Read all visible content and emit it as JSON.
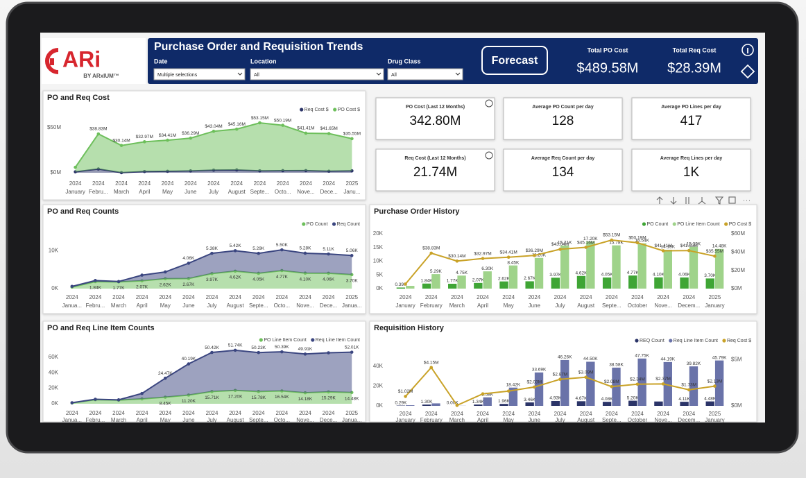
{
  "logo": {
    "name": "ARi",
    "tagline": "BY ARxIUM™"
  },
  "header": {
    "title": "Purchase Order and Requisition Trends",
    "filters": [
      {
        "label": "Date",
        "value": "Multiple selections"
      },
      {
        "label": "Location",
        "value": "All"
      },
      {
        "label": "Drug Class",
        "value": "All"
      }
    ],
    "button": "Forecast",
    "totals": [
      {
        "label": "Total PO Cost",
        "value": "$489.58M"
      },
      {
        "label": "Total Req Cost",
        "value": "$28.39M"
      }
    ]
  },
  "kpis": [
    {
      "label": "PO Cost (Last 12 Months)",
      "value": "342.80M"
    },
    {
      "label": "Average PO Count per day",
      "value": "128"
    },
    {
      "label": "Average PO Lines per day",
      "value": "417"
    },
    {
      "label": "Req Cost (Last 12 Months)",
      "value": "21.74M"
    },
    {
      "label": "Average Req Count per day",
      "value": "134"
    },
    {
      "label": "Average Req Lines per day",
      "value": "1K"
    }
  ],
  "chart_data": [
    {
      "type": "area",
      "stacked": true,
      "grid": false,
      "title": "PO and Req Cost",
      "categories": [
        "January",
        "Febru...",
        "March",
        "April",
        "May",
        "June",
        "July",
        "August",
        "Septe...",
        "Octo...",
        "Nove...",
        "Dece...",
        "Janu..."
      ],
      "years": [
        "2024",
        "2024",
        "2024",
        "2024",
        "2024",
        "2024",
        "2024",
        "2024",
        "2024",
        "2024",
        "2024",
        "2024",
        "2025"
      ],
      "ylim": [
        0,
        76
      ],
      "yticks": [
        {
          "value": 0,
          "label": "$0M"
        },
        {
          "value": 50,
          "label": "$50M"
        }
      ],
      "series": [
        {
          "name": "Req Cost $",
          "color": "#2b3468",
          "values": [
            1.02,
            4.15,
            0.05,
            1.3,
            1.6,
            2.03,
            2.87,
            3.09,
            2.08,
            2.34,
            2.37,
            1.73,
            2.13
          ]
        },
        {
          "name": "PO Cost $",
          "color": "#6dbf5b",
          "values": [
            5,
            38.83,
            30.14,
            32.97,
            34.41,
            36.29,
            43.04,
            45.16,
            53.15,
            50.19,
            41.41,
            41.65,
            35.55
          ],
          "value_labels": [
            null,
            "$38.83M",
            "$30.14M",
            "$32.97M",
            "$34.41M",
            "$36.29M",
            "$43.04M",
            "$45.16M",
            "$53.15M",
            "$50.19M",
            "$41.41M",
            "$41.65M",
            "$35.55M"
          ]
        }
      ]
    },
    {
      "type": "area",
      "stacked": true,
      "grid": false,
      "title": "PO and Req Counts",
      "categories": [
        "Janua...",
        "Febru...",
        "March",
        "April",
        "May",
        "June",
        "July",
        "August",
        "Septe...",
        "Octo...",
        "Nove...",
        "Dece...",
        "Janua..."
      ],
      "years": [
        "2024",
        "2024",
        "2024",
        "2024",
        "2024",
        "2024",
        "2024",
        "2024",
        "2024",
        "2024",
        "2024",
        "2024",
        "2025"
      ],
      "ylim": [
        0,
        12.5
      ],
      "yticks": [
        {
          "value": 0,
          "label": "0K"
        },
        {
          "value": 10,
          "label": "10K"
        }
      ],
      "series": [
        {
          "name": "PO Count",
          "color": "#6dbf5b",
          "values": [
            0.39,
            1.84,
            1.77,
            2.07,
            2.62,
            2.67,
            3.97,
            4.62,
            4.05,
            4.77,
            4.1,
            4.06,
            3.7
          ],
          "value_labels": [
            null,
            "1.84K",
            "1.77K",
            "2.07K",
            "2.62K",
            "2.67K",
            "3.97K",
            "4.62K",
            "4.05K",
            "4.77K",
            "4.10K",
            "4.06K",
            "3.70K"
          ]
        },
        {
          "name": "Req Count",
          "color": "#3b4680",
          "values": [
            0.2,
            0.3,
            0.1,
            1.5,
            1.8,
            4.06,
            5.38,
            5.42,
            5.29,
            5.5,
            5.28,
            5.11,
            5.06
          ],
          "value_labels": [
            null,
            null,
            null,
            null,
            null,
            "4.06K",
            "5.38K",
            "5.42K",
            "5.29K",
            "5.50K",
            "5.28K",
            "5.11K",
            "5.06K"
          ]
        }
      ]
    },
    {
      "type": "area",
      "stacked": true,
      "grid": false,
      "title": "PO and Req Line Item Counts",
      "categories": [
        "Janua...",
        "Febru...",
        "March",
        "April",
        "May",
        "June",
        "July",
        "August",
        "Septe...",
        "Octo...",
        "Nove...",
        "Dece...",
        "Janua..."
      ],
      "years": [
        "2024",
        "2024",
        "2024",
        "2024",
        "2024",
        "2024",
        "2024",
        "2024",
        "2024",
        "2024",
        "2024",
        "2024",
        "2025"
      ],
      "ylim": [
        0,
        76
      ],
      "yticks": [
        {
          "value": 0,
          "label": "0K"
        },
        {
          "value": 20,
          "label": "20K"
        },
        {
          "value": 40,
          "label": "40K"
        },
        {
          "value": 60,
          "label": "60K"
        }
      ],
      "series": [
        {
          "name": "PO Line Item Count",
          "color": "#6dbf5b",
          "values": [
            1.0,
            5.29,
            4.75,
            6.3,
            8.45,
            11.2,
            15.71,
            17.2,
            15.78,
            16.54,
            14.18,
            15.29,
            14.48
          ],
          "value_labels": [
            null,
            null,
            null,
            null,
            "8.45K",
            "11.20K",
            "15.71K",
            "17.20K",
            "15.78K",
            "16.54K",
            "14.18K",
            "15.29K",
            "14.48K"
          ]
        },
        {
          "name": "Req Line Item Count",
          "color": "#3b4680",
          "values": [
            0.3,
            0.5,
            0.3,
            7,
            24.47,
            40.19,
            50.42,
            51.74,
            50.23,
            50.39,
            49.91,
            50.4,
            52.01
          ],
          "value_labels": [
            null,
            null,
            null,
            null,
            "24.47K",
            "40.19K",
            "50.42K",
            "51.74K",
            "50.23K",
            "50.39K",
            "49.91K",
            null,
            "52.01K"
          ]
        }
      ]
    },
    {
      "type": "combo",
      "grid": false,
      "title": "Purchase Order History",
      "categories": [
        "January",
        "February",
        "March",
        "April",
        "May",
        "June",
        "July",
        "August",
        "Septe...",
        "October",
        "Nove...",
        "Decem...",
        "January"
      ],
      "years": [
        "2024",
        "2024",
        "2024",
        "2024",
        "2024",
        "2024",
        "2024",
        "2024",
        "2024",
        "2024",
        "2024",
        "2024",
        "2025"
      ],
      "ylim": [
        0,
        20
      ],
      "yticks": [
        {
          "value": 0,
          "label": "0K"
        },
        {
          "value": 5,
          "label": "5K"
        },
        {
          "value": 10,
          "label": "10K"
        },
        {
          "value": 15,
          "label": "15K"
        },
        {
          "value": 20,
          "label": "20K"
        }
      ],
      "y2lim": [
        0,
        60
      ],
      "y2ticks": [
        {
          "value": 0,
          "label": "$0M"
        },
        {
          "value": 20,
          "label": "$20M"
        },
        {
          "value": 40,
          "label": "$40M"
        },
        {
          "value": 60,
          "label": "$60M"
        }
      ],
      "series": [
        {
          "name": "PO Count",
          "color": "#3fa535",
          "values": [
            0.39,
            1.84,
            1.77,
            2.07,
            2.62,
            2.67,
            3.97,
            4.62,
            4.05,
            4.77,
            4.1,
            4.06,
            3.7
          ],
          "value_labels": [
            "0.39K",
            "1.84K",
            "1.77K",
            "2.07K",
            "2.62K",
            "2.67K",
            "3.97K",
            "4.62K",
            "4.05K",
            "4.77K",
            "4.10K",
            "4.06K",
            "3.70K"
          ]
        },
        {
          "name": "PO Line Item Count",
          "color": "#9fd38a",
          "values": [
            1.0,
            5.29,
            4.75,
            6.3,
            8.45,
            11.2,
            15.71,
            17.2,
            15.78,
            16.54,
            14.18,
            15.29,
            14.48
          ],
          "value_labels": [
            null,
            "5.29K",
            "4.75K",
            "6.30K",
            "8.45K",
            "11.20K",
            "15.71K",
            "17.20K",
            "15.78K",
            "16.54K",
            "14.18K",
            "15.29K",
            "14.48K"
          ]
        },
        {
          "name": "PO Cost $",
          "color": "#c9a227",
          "axis": "y2",
          "values": [
            5,
            38.83,
            30.14,
            32.97,
            34.41,
            36.29,
            43.04,
            45.16,
            53.15,
            50.19,
            41.41,
            41.65,
            35.55
          ],
          "value_labels": [
            null,
            "$38.83M",
            "$30.14M",
            "$32.97M",
            "$34.41M",
            "$36.29M",
            "$43.04M",
            "$45.16M",
            "$53.15M",
            "$50.19M",
            "$41.41M",
            "$41.65M",
            "$35.55M"
          ]
        }
      ]
    },
    {
      "type": "combo",
      "grid": false,
      "title": "Requisition History",
      "categories": [
        "January",
        "February",
        "March",
        "April",
        "May",
        "June",
        "July",
        "August",
        "Septe...",
        "October",
        "Nove...",
        "Decem...",
        "January"
      ],
      "years": [
        "2024",
        "2024",
        "2024",
        "2024",
        "2024",
        "2024",
        "2024",
        "2024",
        "2024",
        "2024",
        "2024",
        "2024",
        "2025"
      ],
      "ylim": [
        0,
        56
      ],
      "yticks": [
        {
          "value": 0,
          "label": "0K"
        },
        {
          "value": 20,
          "label": "20K"
        },
        {
          "value": 40,
          "label": "40K"
        }
      ],
      "y2lim": [
        0,
        6
      ],
      "y2ticks": [
        {
          "value": 0,
          "label": "$0M"
        },
        {
          "value": 5,
          "label": "$5M"
        }
      ],
      "series": [
        {
          "name": "REQ Count",
          "color": "#2b3468",
          "values": [
            0.29,
            1.3,
            0.0,
            1.34,
            1.96,
            3.46,
            4.93,
            4.67,
            4.08,
            5.2,
            4.4,
            4.11,
            4.48
          ],
          "value_labels": [
            "0.29K",
            "1.30K",
            "0.00K",
            "1.34K",
            "1.96K",
            "3.46K",
            "4.93K",
            "4.67K",
            "4.08K",
            "5.20K",
            null,
            "4.11K",
            "4.48K"
          ]
        },
        {
          "name": "Req Line Item Count",
          "color": "#6a73a9",
          "values": [
            0.6,
            2.5,
            0.1,
            8.58,
            18.42,
            33.69,
            46.26,
            44.5,
            38.58,
            47.75,
            44.19,
            39.82,
            45.79
          ],
          "value_labels": [
            null,
            null,
            null,
            "8.58K",
            "18.42K",
            "33.69K",
            "46.26K",
            "44.50K",
            "38.58K",
            "47.75K",
            "44.19K",
            "39.82K",
            "45.79K"
          ]
        },
        {
          "name": "Req Cost $",
          "color": "#c9a227",
          "axis": "y2",
          "values": [
            1.02,
            4.15,
            0.05,
            1.3,
            1.6,
            2.03,
            2.87,
            3.09,
            2.08,
            2.34,
            2.37,
            1.73,
            2.13
          ],
          "value_labels": [
            "$1.02M",
            "$4.15M",
            null,
            null,
            null,
            "$2.03M",
            "$2.87M",
            "$3.09M",
            "$2.08M",
            "$2.34M",
            "$2.37M",
            "$1.73M",
            "$2.13M"
          ]
        }
      ]
    }
  ]
}
